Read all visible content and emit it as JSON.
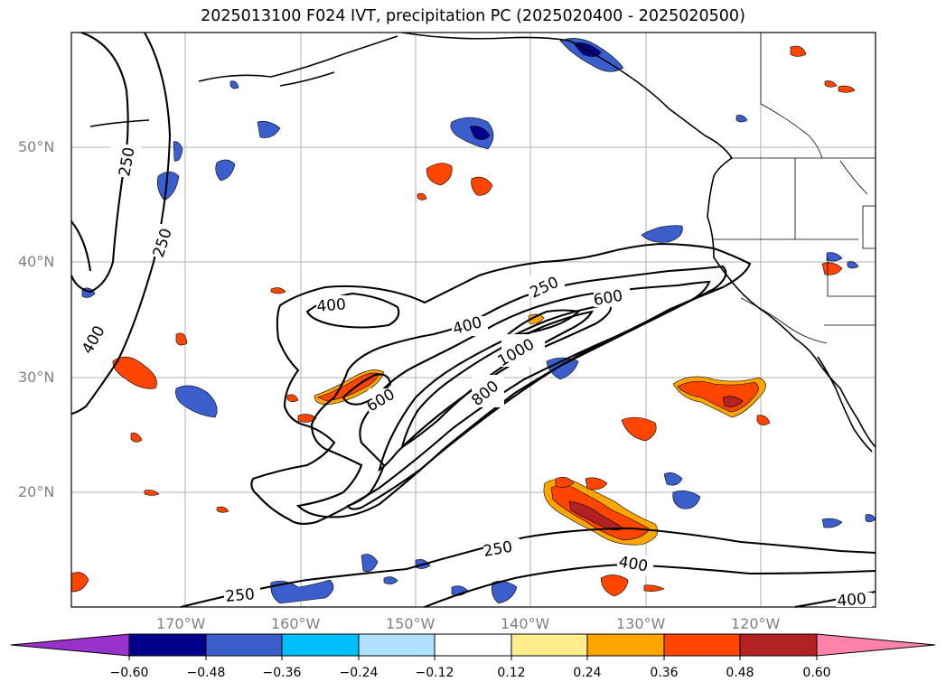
{
  "title": "2025013100 F024 IVT, precipitation PC (2025020400 - 2025020500)",
  "lat_labels": [
    "50°N",
    "40°N",
    "30°N",
    "20°N"
  ],
  "lon_labels": [
    "170°W",
    "160°W",
    "150°W",
    "140°W",
    "130°W",
    "120°W"
  ],
  "ivt_contour_labels": [
    "250",
    "250",
    "400",
    "400",
    "400",
    "250",
    "600",
    "1000",
    "800",
    "600",
    "250",
    "400",
    "250",
    "400"
  ],
  "colorbar": {
    "tick_labels": [
      "−0.60",
      "−0.48",
      "−0.36",
      "−0.24",
      "−0.12",
      "0.12",
      "0.24",
      "0.36",
      "0.48",
      "0.60"
    ],
    "colors": [
      "#9932cc",
      "#00008b",
      "#3a5fcd",
      "#00bfff",
      "#b0e2ff",
      "#ffffff",
      "#ffec8b",
      "#ffa500",
      "#ff4500",
      "#b22222",
      "#ff82ab"
    ]
  }
}
